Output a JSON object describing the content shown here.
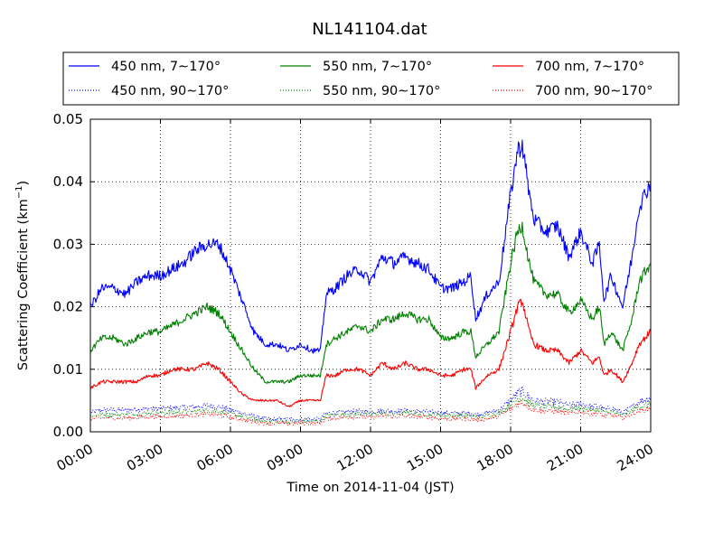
{
  "chart_data": {
    "type": "line",
    "title": "NL141104.dat",
    "xlabel": "Time on 2014-11-04 (JST)",
    "ylabel": "Scattering Coefficient (km",
    "ylabel_exponent": "−1",
    "ylabel_tail": ")",
    "xlim": [
      0,
      24
    ],
    "ylim": [
      0,
      0.05
    ],
    "grid": true,
    "legend_position": "top (above plot)",
    "x_ticks": [
      0,
      3,
      6,
      9,
      12,
      15,
      18,
      21,
      24
    ],
    "x_tick_labels": [
      "00:00",
      "03:00",
      "06:00",
      "09:00",
      "12:00",
      "15:00",
      "18:00",
      "21:00",
      "24:00"
    ],
    "y_ticks": [
      0,
      0.01,
      0.02,
      0.03,
      0.04,
      0.05
    ],
    "y_tick_labels": [
      "0.00",
      "0.01",
      "0.02",
      "0.03",
      "0.04",
      "0.05"
    ],
    "x": [
      0,
      0.5,
      1,
      1.5,
      2,
      2.5,
      3,
      3.5,
      4,
      4.5,
      5,
      5.5,
      6,
      6.5,
      7,
      7.5,
      8,
      8.5,
      9,
      9.5,
      9.85,
      10.1,
      10.5,
      11,
      11.5,
      12,
      12.5,
      13,
      13.5,
      14,
      14.5,
      15,
      15.5,
      16,
      16.3,
      16.5,
      17,
      17.5,
      18,
      18.3,
      18.5,
      18.8,
      19,
      19.5,
      20,
      20.5,
      21,
      21.5,
      21.8,
      22,
      22.3,
      22.8,
      23.2,
      23.5,
      24
    ],
    "series": [
      {
        "name": "450 nm, 7∼170°",
        "color": "#0000ff",
        "style": "solid",
        "values": [
          0.02,
          0.023,
          0.023,
          0.022,
          0.024,
          0.025,
          0.025,
          0.026,
          0.027,
          0.029,
          0.03,
          0.03,
          0.026,
          0.021,
          0.016,
          0.014,
          0.014,
          0.013,
          0.014,
          0.013,
          0.013,
          0.022,
          0.023,
          0.025,
          0.026,
          0.024,
          0.028,
          0.027,
          0.028,
          0.027,
          0.026,
          0.023,
          0.023,
          0.024,
          0.025,
          0.018,
          0.022,
          0.024,
          0.038,
          0.045,
          0.046,
          0.038,
          0.034,
          0.032,
          0.033,
          0.028,
          0.032,
          0.027,
          0.03,
          0.021,
          0.025,
          0.02,
          0.028,
          0.036,
          0.04
        ]
      },
      {
        "name": "550 nm, 7∼170°",
        "color": "#008000",
        "style": "solid",
        "values": [
          0.013,
          0.015,
          0.015,
          0.014,
          0.015,
          0.016,
          0.016,
          0.017,
          0.018,
          0.019,
          0.02,
          0.019,
          0.016,
          0.013,
          0.01,
          0.008,
          0.008,
          0.008,
          0.009,
          0.009,
          0.009,
          0.014,
          0.015,
          0.016,
          0.017,
          0.016,
          0.018,
          0.018,
          0.019,
          0.018,
          0.018,
          0.015,
          0.015,
          0.016,
          0.016,
          0.012,
          0.014,
          0.016,
          0.027,
          0.032,
          0.033,
          0.027,
          0.024,
          0.022,
          0.022,
          0.019,
          0.021,
          0.018,
          0.02,
          0.014,
          0.016,
          0.013,
          0.018,
          0.024,
          0.027
        ]
      },
      {
        "name": "700 nm, 7∼170°",
        "color": "#ff0000",
        "style": "solid",
        "values": [
          0.007,
          0.008,
          0.008,
          0.008,
          0.008,
          0.009,
          0.009,
          0.01,
          0.01,
          0.01,
          0.011,
          0.01,
          0.008,
          0.006,
          0.005,
          0.005,
          0.005,
          0.004,
          0.005,
          0.005,
          0.005,
          0.009,
          0.009,
          0.01,
          0.01,
          0.009,
          0.011,
          0.01,
          0.011,
          0.01,
          0.01,
          0.009,
          0.009,
          0.01,
          0.01,
          0.007,
          0.009,
          0.01,
          0.016,
          0.02,
          0.021,
          0.016,
          0.014,
          0.013,
          0.013,
          0.011,
          0.013,
          0.011,
          0.012,
          0.009,
          0.01,
          0.008,
          0.011,
          0.014,
          0.016
        ]
      },
      {
        "name": "450 nm, 90∼170°",
        "color": "#0000ff",
        "style": "dotted",
        "values": [
          0.003,
          0.0035,
          0.0035,
          0.0035,
          0.0036,
          0.0037,
          0.0037,
          0.0038,
          0.0039,
          0.004,
          0.0042,
          0.004,
          0.0035,
          0.003,
          0.0025,
          0.002,
          0.002,
          0.002,
          0.002,
          0.002,
          0.002,
          0.003,
          0.003,
          0.0032,
          0.0033,
          0.0032,
          0.0034,
          0.0033,
          0.0034,
          0.0033,
          0.0032,
          0.003,
          0.003,
          0.003,
          0.003,
          0.0027,
          0.003,
          0.0035,
          0.005,
          0.0062,
          0.0065,
          0.0055,
          0.005,
          0.0048,
          0.0048,
          0.0042,
          0.0045,
          0.004,
          0.0042,
          0.0035,
          0.0038,
          0.003,
          0.004,
          0.0048,
          0.0055
        ]
      },
      {
        "name": "550 nm, 90∼170°",
        "color": "#008000",
        "style": "dotted",
        "values": [
          0.0025,
          0.0028,
          0.0028,
          0.0028,
          0.0029,
          0.003,
          0.003,
          0.0031,
          0.0032,
          0.0033,
          0.0035,
          0.0033,
          0.0029,
          0.0025,
          0.002,
          0.0017,
          0.0017,
          0.0016,
          0.0017,
          0.0017,
          0.0017,
          0.0026,
          0.0027,
          0.0028,
          0.0029,
          0.0028,
          0.003,
          0.0029,
          0.003,
          0.0029,
          0.0028,
          0.0026,
          0.0026,
          0.0026,
          0.0026,
          0.0023,
          0.0026,
          0.003,
          0.0042,
          0.0052,
          0.0055,
          0.0046,
          0.0042,
          0.004,
          0.004,
          0.0036,
          0.0038,
          0.0034,
          0.0036,
          0.003,
          0.0032,
          0.0026,
          0.0034,
          0.004,
          0.0045
        ]
      },
      {
        "name": "700 nm, 90∼170°",
        "color": "#ff0000",
        "style": "dotted",
        "values": [
          0.002,
          0.0022,
          0.0022,
          0.0022,
          0.0023,
          0.0024,
          0.0024,
          0.0025,
          0.0026,
          0.0027,
          0.0028,
          0.0027,
          0.0023,
          0.002,
          0.0016,
          0.0014,
          0.0014,
          0.0013,
          0.0014,
          0.0014,
          0.0014,
          0.0021,
          0.0022,
          0.0023,
          0.0024,
          0.0023,
          0.0025,
          0.0024,
          0.0025,
          0.0024,
          0.0023,
          0.0021,
          0.0021,
          0.0021,
          0.0021,
          0.0019,
          0.0021,
          0.0025,
          0.0036,
          0.0045,
          0.0047,
          0.0039,
          0.0035,
          0.0033,
          0.0033,
          0.003,
          0.0032,
          0.0028,
          0.003,
          0.0025,
          0.0027,
          0.0022,
          0.0028,
          0.0033,
          0.0038
        ]
      }
    ]
  }
}
